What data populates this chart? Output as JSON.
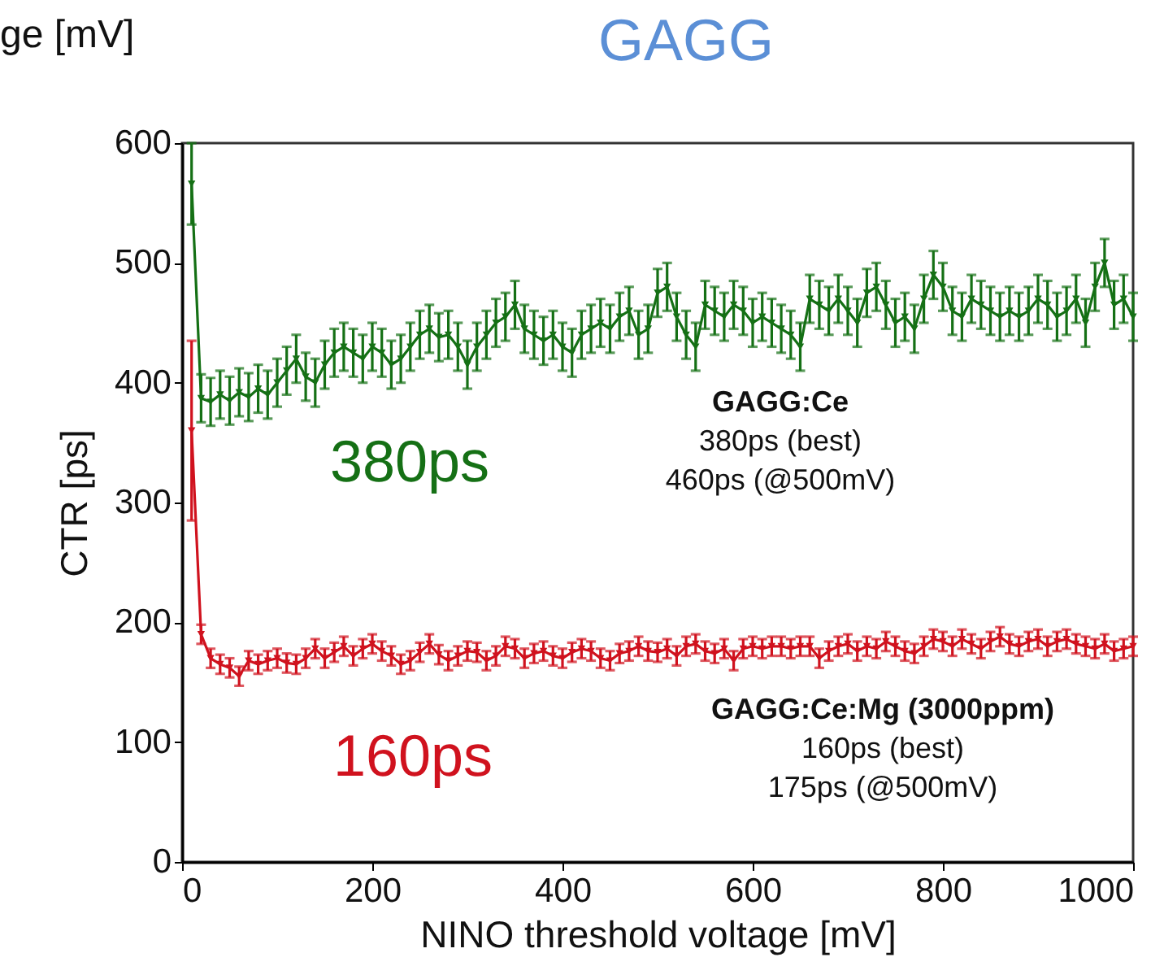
{
  "chart_data": {
    "type": "line",
    "title": "GAGG",
    "xlabel": "NINO threshold voltage [mV]",
    "ylabel": "CTR [ps]",
    "x": [
      10,
      20,
      30,
      40,
      50,
      60,
      70,
      80,
      90,
      100,
      110,
      120,
      130,
      140,
      150,
      160,
      170,
      180,
      190,
      200,
      210,
      220,
      230,
      240,
      250,
      260,
      270,
      280,
      290,
      300,
      310,
      320,
      330,
      340,
      350,
      360,
      370,
      380,
      390,
      400,
      410,
      420,
      430,
      440,
      450,
      460,
      470,
      480,
      490,
      500,
      510,
      520,
      530,
      540,
      550,
      560,
      570,
      580,
      590,
      600,
      610,
      620,
      630,
      640,
      650,
      660,
      670,
      680,
      690,
      700,
      710,
      720,
      730,
      740,
      750,
      760,
      770,
      780,
      790,
      800,
      810,
      820,
      830,
      840,
      850,
      860,
      870,
      880,
      890,
      900,
      910,
      920,
      930,
      940,
      950,
      960,
      970,
      980,
      990,
      1000
    ],
    "series": [
      {
        "color": "#157015",
        "values": [
          566,
          387,
          384,
          390,
          385,
          392,
          388,
          395,
          390,
          400,
          410,
          420,
          405,
          400,
          415,
          425,
          430,
          425,
          420,
          430,
          425,
          415,
          420,
          430,
          440,
          445,
          438,
          440,
          430,
          415,
          430,
          440,
          450,
          455,
          465,
          445,
          440,
          435,
          440,
          430,
          425,
          440,
          445,
          450,
          445,
          455,
          460,
          440,
          445,
          475,
          480,
          455,
          440,
          430,
          465,
          460,
          455,
          465,
          460,
          450,
          455,
          450,
          445,
          440,
          430,
          470,
          465,
          460,
          470,
          460,
          450,
          475,
          480,
          465,
          450,
          455,
          445,
          470,
          490,
          480,
          460,
          455,
          470,
          465,
          460,
          455,
          460,
          455,
          460,
          470,
          465,
          455,
          460,
          470,
          450,
          480,
          500,
          465,
          470,
          455
        ],
        "errors": [
          34,
          20,
          20,
          20,
          20,
          20,
          20,
          20,
          20,
          20,
          20,
          20,
          20,
          20,
          20,
          20,
          20,
          20,
          20,
          20,
          20,
          20,
          20,
          20,
          20,
          20,
          20,
          20,
          20,
          20,
          20,
          20,
          20,
          20,
          20,
          20,
          20,
          20,
          20,
          20,
          20,
          20,
          20,
          20,
          20,
          20,
          20,
          20,
          20,
          20,
          20,
          20,
          20,
          20,
          20,
          20,
          20,
          20,
          20,
          20,
          20,
          20,
          20,
          20,
          20,
          20,
          20,
          20,
          20,
          20,
          20,
          20,
          20,
          20,
          20,
          20,
          20,
          20,
          20,
          20,
          20,
          20,
          20,
          20,
          20,
          20,
          20,
          20,
          20,
          20,
          20,
          20,
          20,
          20,
          20,
          20,
          20,
          20,
          20,
          20
        ]
      },
      {
        "color": "#d0121e",
        "values": [
          360,
          190,
          170,
          165,
          162,
          155,
          168,
          165,
          168,
          170,
          166,
          165,
          170,
          178,
          170,
          175,
          180,
          172,
          178,
          182,
          176,
          172,
          165,
          168,
          175,
          182,
          173,
          168,
          172,
          176,
          175,
          168,
          172,
          180,
          178,
          170,
          174,
          176,
          172,
          170,
          175,
          178,
          176,
          170,
          168,
          174,
          176,
          180,
          176,
          175,
          178,
          172,
          180,
          182,
          176,
          174,
          178,
          168,
          178,
          180,
          178,
          180,
          180,
          178,
          180,
          180,
          170,
          176,
          180,
          182,
          176,
          180,
          178,
          184,
          180,
          176,
          174,
          180,
          186,
          184,
          180,
          186,
          182,
          178,
          184,
          188,
          182,
          180,
          184,
          186,
          180,
          184,
          186,
          182,
          180,
          178,
          182,
          176,
          178,
          180
        ],
        "errors": [
          75,
          8,
          8,
          8,
          8,
          8,
          8,
          8,
          8,
          8,
          8,
          8,
          8,
          8,
          8,
          8,
          8,
          8,
          8,
          8,
          8,
          8,
          8,
          8,
          8,
          8,
          8,
          8,
          8,
          8,
          8,
          8,
          8,
          8,
          8,
          8,
          8,
          8,
          8,
          8,
          8,
          8,
          8,
          8,
          8,
          8,
          8,
          8,
          8,
          8,
          8,
          8,
          8,
          8,
          8,
          8,
          8,
          8,
          8,
          8,
          8,
          8,
          8,
          8,
          8,
          8,
          8,
          8,
          8,
          8,
          8,
          8,
          8,
          8,
          8,
          8,
          8,
          8,
          8,
          8,
          8,
          8,
          8,
          8,
          8,
          8,
          8,
          8,
          8,
          8,
          8,
          8,
          8,
          8,
          8,
          8,
          8,
          8,
          8,
          8
        ]
      }
    ],
    "xlim": [
      0,
      1000
    ],
    "xticks": [
      0,
      200,
      400,
      600,
      800,
      1000
    ],
    "ylim": [
      0,
      600
    ],
    "yticks": [
      0,
      100,
      200,
      300,
      400,
      500,
      600
    ],
    "grid": false,
    "legend": false,
    "marker": "triangle",
    "line_style": "solid",
    "annotations": [
      "GAGG:Ce",
      "380ps (best)",
      "460ps (@500mV)",
      "GAGG:Ce:Mg (3000ppm)",
      "160ps (best)",
      "175ps (@500mV)",
      "380ps",
      "160ps",
      "ge [mV]"
    ]
  }
}
